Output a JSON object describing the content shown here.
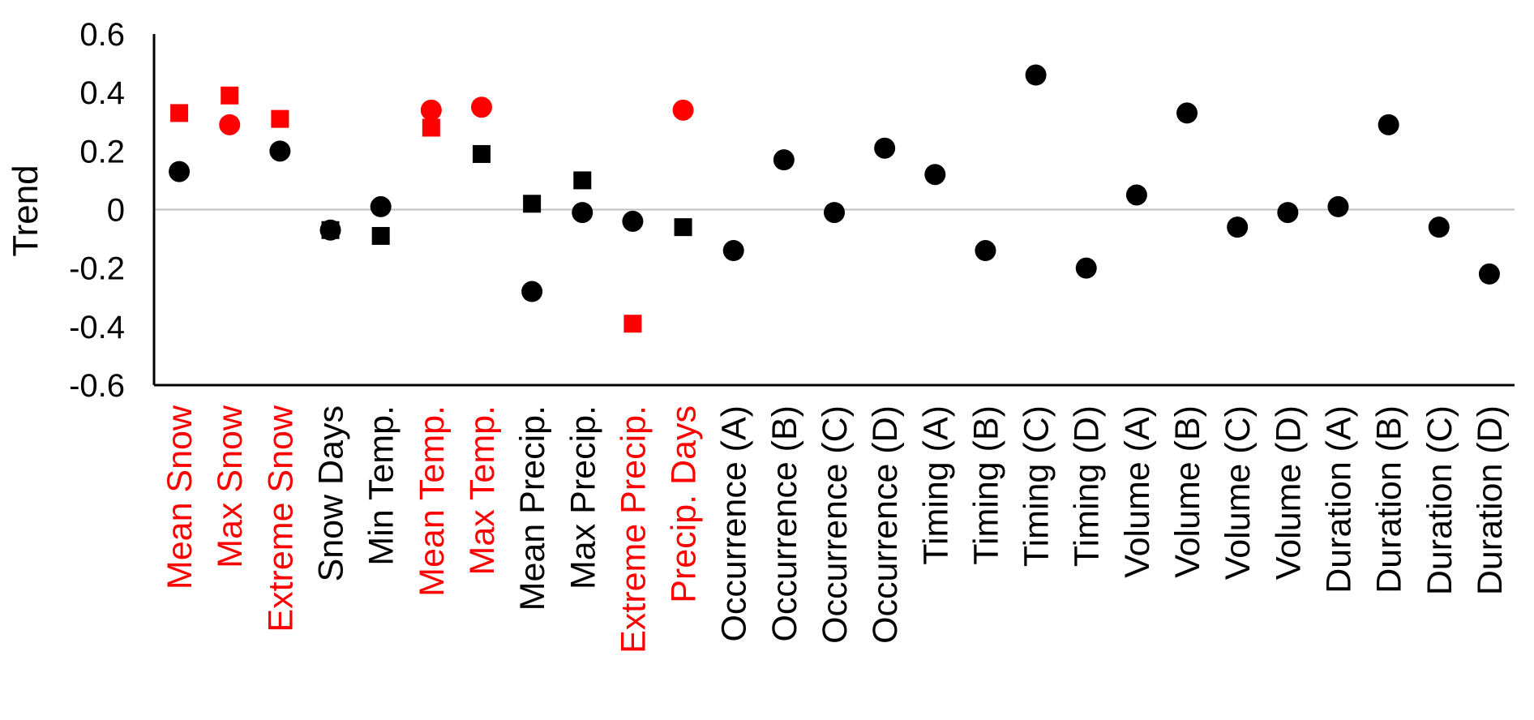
{
  "chart_data": {
    "type": "scatter",
    "title": "",
    "xlabel": "",
    "ylabel": "Trend",
    "ylim": [
      -0.6,
      0.6
    ],
    "yticks": [
      0.6,
      0.4,
      0.2,
      0,
      -0.2,
      -0.4,
      -0.6
    ],
    "ytick_labels": [
      "0.6",
      "0.4",
      "0.2",
      "0",
      "-0.2",
      "-0.4",
      "-0.6"
    ],
    "zero_line": true,
    "grid": false,
    "legend": "none",
    "colors": {
      "highlight": "#ff0000",
      "default": "#000000",
      "zero_line": "#bfbfbf",
      "axis": "#000000"
    },
    "categories": [
      "Mean Snow",
      "Max Snow",
      "Extreme Snow",
      "Snow Days",
      "Min Temp.",
      "Mean Temp.",
      "Max Temp.",
      "Mean Precip.",
      "Max Precip.",
      "Extreme Precip.",
      "Precip. Days",
      "Occurrence (A)",
      "Occurrence (B)",
      "Occurrence (C)",
      "Occurrence (D)",
      "Timing (A)",
      "Timing (B)",
      "Timing (C)",
      "Timing (D)",
      "Volume (A)",
      "Volume (B)",
      "Volume (C)",
      "Volume (D)",
      "Duration (A)",
      "Duration (B)",
      "Duration (C)",
      "Duration (D)"
    ],
    "category_colors": [
      "#ff0000",
      "#ff0000",
      "#ff0000",
      "#000000",
      "#000000",
      "#ff0000",
      "#ff0000",
      "#000000",
      "#000000",
      "#ff0000",
      "#ff0000",
      "#000000",
      "#000000",
      "#000000",
      "#000000",
      "#000000",
      "#000000",
      "#000000",
      "#000000",
      "#000000",
      "#000000",
      "#000000",
      "#000000",
      "#000000",
      "#000000",
      "#000000",
      "#000000"
    ],
    "series": [
      {
        "marker": "circle",
        "points": [
          {
            "category": "Mean Snow",
            "y": 0.13,
            "color": "#000000"
          },
          {
            "category": "Max Snow",
            "y": 0.29,
            "color": "#ff0000"
          },
          {
            "category": "Extreme Snow",
            "y": 0.2,
            "color": "#000000"
          },
          {
            "category": "Snow Days",
            "y": -0.07,
            "color": "#000000"
          },
          {
            "category": "Min Temp.",
            "y": 0.01,
            "color": "#000000"
          },
          {
            "category": "Mean Temp.",
            "y": 0.34,
            "color": "#ff0000"
          },
          {
            "category": "Max Temp.",
            "y": 0.35,
            "color": "#ff0000"
          },
          {
            "category": "Mean Precip.",
            "y": -0.28,
            "color": "#000000"
          },
          {
            "category": "Max Precip.",
            "y": -0.01,
            "color": "#000000"
          },
          {
            "category": "Extreme Precip.",
            "y": -0.04,
            "color": "#000000"
          },
          {
            "category": "Precip. Days",
            "y": 0.34,
            "color": "#ff0000"
          },
          {
            "category": "Occurrence (A)",
            "y": -0.14,
            "color": "#000000"
          },
          {
            "category": "Occurrence (B)",
            "y": 0.17,
            "color": "#000000"
          },
          {
            "category": "Occurrence (C)",
            "y": -0.01,
            "color": "#000000"
          },
          {
            "category": "Occurrence (D)",
            "y": 0.21,
            "color": "#000000"
          },
          {
            "category": "Timing (A)",
            "y": 0.12,
            "color": "#000000"
          },
          {
            "category": "Timing (B)",
            "y": -0.14,
            "color": "#000000"
          },
          {
            "category": "Timing (C)",
            "y": 0.46,
            "color": "#000000"
          },
          {
            "category": "Timing (D)",
            "y": -0.2,
            "color": "#000000"
          },
          {
            "category": "Volume (A)",
            "y": 0.05,
            "color": "#000000"
          },
          {
            "category": "Volume (B)",
            "y": 0.33,
            "color": "#000000"
          },
          {
            "category": "Volume (C)",
            "y": -0.06,
            "color": "#000000"
          },
          {
            "category": "Volume (D)",
            "y": -0.01,
            "color": "#000000"
          },
          {
            "category": "Duration (A)",
            "y": 0.01,
            "color": "#000000"
          },
          {
            "category": "Duration (B)",
            "y": 0.29,
            "color": "#000000"
          },
          {
            "category": "Duration (C)",
            "y": -0.06,
            "color": "#000000"
          },
          {
            "category": "Duration (D)",
            "y": -0.22,
            "color": "#000000"
          }
        ]
      },
      {
        "marker": "square",
        "points": [
          {
            "category": "Mean Snow",
            "y": 0.33,
            "color": "#ff0000"
          },
          {
            "category": "Max Snow",
            "y": 0.39,
            "color": "#ff0000"
          },
          {
            "category": "Extreme Snow",
            "y": 0.31,
            "color": "#ff0000"
          },
          {
            "category": "Snow Days",
            "y": -0.07,
            "color": "#000000"
          },
          {
            "category": "Min Temp.",
            "y": -0.09,
            "color": "#000000"
          },
          {
            "category": "Mean Temp.",
            "y": 0.28,
            "color": "#ff0000"
          },
          {
            "category": "Max Temp.",
            "y": 0.19,
            "color": "#000000"
          },
          {
            "category": "Mean Precip.",
            "y": 0.02,
            "color": "#000000"
          },
          {
            "category": "Max Precip.",
            "y": 0.1,
            "color": "#000000"
          },
          {
            "category": "Extreme Precip.",
            "y": -0.39,
            "color": "#ff0000"
          },
          {
            "category": "Precip. Days",
            "y": -0.06,
            "color": "#000000"
          }
        ]
      }
    ]
  }
}
